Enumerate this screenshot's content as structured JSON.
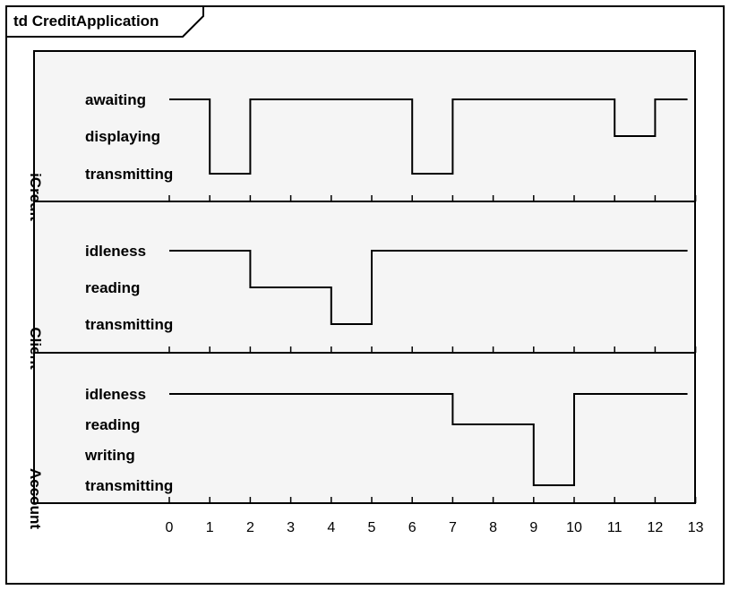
{
  "frame": {
    "title": "td CreditApplication"
  },
  "timeline": {
    "ticks": [
      "0",
      "1",
      "2",
      "3",
      "4",
      "5",
      "6",
      "7",
      "8",
      "9",
      "10",
      "11",
      "12",
      "13"
    ]
  },
  "lifelines": [
    {
      "name": "iCredit",
      "states": [
        "awaiting",
        "displaying",
        "transmitting"
      ],
      "segments": [
        {
          "from": 0,
          "to": 1,
          "state": "awaiting"
        },
        {
          "from": 1,
          "to": 2,
          "state": "transmitting"
        },
        {
          "from": 2,
          "to": 6,
          "state": "awaiting"
        },
        {
          "from": 6,
          "to": 7,
          "state": "transmitting"
        },
        {
          "from": 7,
          "to": 11,
          "state": "awaiting"
        },
        {
          "from": 11,
          "to": 12,
          "state": "displaying"
        },
        {
          "from": 12,
          "to": 12.8,
          "state": "awaiting"
        }
      ]
    },
    {
      "name": "Client",
      "states": [
        "idleness",
        "reading",
        "transmitting"
      ],
      "segments": [
        {
          "from": 0,
          "to": 2,
          "state": "idleness"
        },
        {
          "from": 2,
          "to": 4,
          "state": "reading"
        },
        {
          "from": 4,
          "to": 5,
          "state": "transmitting"
        },
        {
          "from": 5,
          "to": 12.8,
          "state": "idleness"
        }
      ]
    },
    {
      "name": "Account",
      "states": [
        "idleness",
        "reading",
        "writing",
        "transmitting"
      ],
      "segments": [
        {
          "from": 0,
          "to": 7,
          "state": "idleness"
        },
        {
          "from": 7,
          "to": 9,
          "state": "reading"
        },
        {
          "from": 9,
          "to": 10,
          "state": "transmitting"
        },
        {
          "from": 10,
          "to": 12.8,
          "state": "idleness"
        }
      ]
    }
  ]
}
